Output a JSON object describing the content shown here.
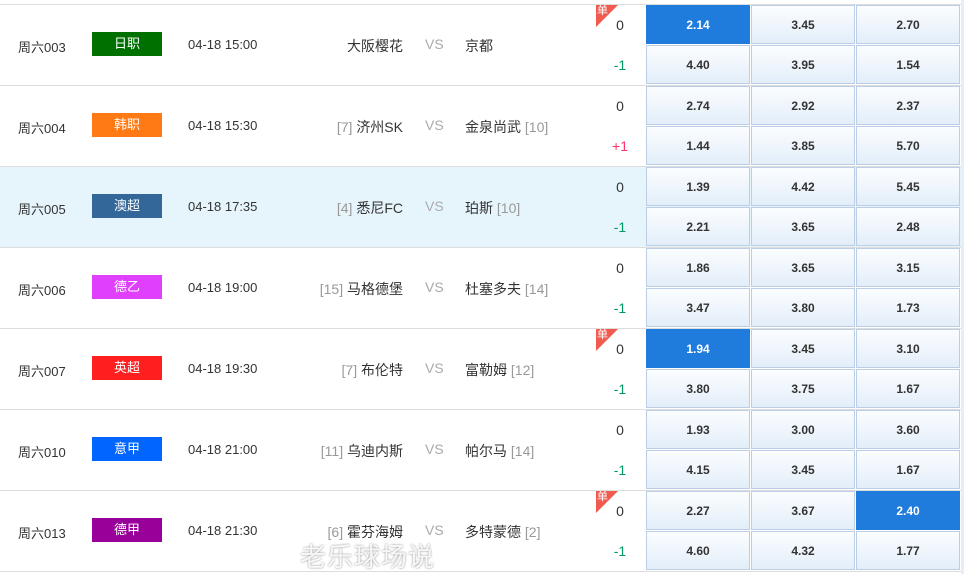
{
  "matches": [
    {
      "code": "周六003",
      "league": "日职",
      "league_color": "#007000",
      "time": "04-18 15:00",
      "home_rank": "",
      "home": "大阪樱花",
      "vs": "VS",
      "away": "京都",
      "away_rank": "",
      "handicap": [
        "0",
        "-1"
      ],
      "single": true,
      "odds": [
        [
          "2.14",
          "3.45",
          "2.70"
        ],
        [
          "4.40",
          "3.95",
          "1.54"
        ]
      ],
      "highlight": [
        [
          0,
          0
        ]
      ]
    },
    {
      "code": "周六004",
      "league": "韩职",
      "league_color": "#ff7a14",
      "time": "04-18 15:30",
      "home_rank": "[7]",
      "home": "济州SK",
      "vs": "VS",
      "away": "金泉尚武",
      "away_rank": "[10]",
      "handicap": [
        "0",
        "+1"
      ],
      "single": false,
      "odds": [
        [
          "2.74",
          "2.92",
          "2.37"
        ],
        [
          "1.44",
          "3.85",
          "5.70"
        ]
      ],
      "highlight": []
    },
    {
      "code": "周六005",
      "league": "澳超",
      "league_color": "#336699",
      "time": "04-18 17:35",
      "home_rank": "[4]",
      "home": "悉尼FC",
      "vs": "VS",
      "away": "珀斯",
      "away_rank": "[10]",
      "handicap": [
        "0",
        "-1"
      ],
      "single": false,
      "odds": [
        [
          "1.39",
          "4.42",
          "5.45"
        ],
        [
          "2.21",
          "3.65",
          "2.48"
        ]
      ],
      "highlight": []
    },
    {
      "code": "周六006",
      "league": "德乙",
      "league_color": "#e040fb",
      "time": "04-18 19:00",
      "home_rank": "[15]",
      "home": "马格德堡",
      "vs": "VS",
      "away": "杜塞多夫",
      "away_rank": "[14]",
      "handicap": [
        "0",
        "-1"
      ],
      "single": false,
      "odds": [
        [
          "1.86",
          "3.65",
          "3.15"
        ],
        [
          "3.47",
          "3.80",
          "1.73"
        ]
      ],
      "highlight": []
    },
    {
      "code": "周六007",
      "league": "英超",
      "league_color": "#ff1f1f",
      "time": "04-18 19:30",
      "home_rank": "[7]",
      "home": "布伦特",
      "vs": "VS",
      "away": "富勒姆",
      "away_rank": "[12]",
      "handicap": [
        "0",
        "-1"
      ],
      "single": true,
      "odds": [
        [
          "1.94",
          "3.45",
          "3.10"
        ],
        [
          "3.80",
          "3.75",
          "1.67"
        ]
      ],
      "highlight": [
        [
          0,
          0
        ]
      ]
    },
    {
      "code": "周六010",
      "league": "意甲",
      "league_color": "#0066ff",
      "time": "04-18 21:00",
      "home_rank": "[11]",
      "home": "乌迪内斯",
      "vs": "VS",
      "away": "帕尔马",
      "away_rank": "[14]",
      "handicap": [
        "0",
        "-1"
      ],
      "single": false,
      "odds": [
        [
          "1.93",
          "3.00",
          "3.60"
        ],
        [
          "4.15",
          "3.45",
          "1.67"
        ]
      ],
      "highlight": []
    },
    {
      "code": "周六013",
      "league": "德甲",
      "league_color": "#990099",
      "time": "04-18 21:30",
      "home_rank": "[6]",
      "home": "霍芬海姆",
      "vs": "VS",
      "away": "多特蒙德",
      "away_rank": "[2]",
      "handicap": [
        "0",
        "-1"
      ],
      "single": true,
      "odds": [
        [
          "2.27",
          "3.67",
          "2.40"
        ],
        [
          "4.60",
          "4.32",
          "1.77"
        ]
      ],
      "highlight": [
        [
          0,
          2
        ]
      ]
    }
  ],
  "single_label": "单",
  "colors": {
    "minus": "#009966",
    "plus": "#ff3366",
    "highlight": "#1f7bdc"
  },
  "watermark": "老乐球场说"
}
